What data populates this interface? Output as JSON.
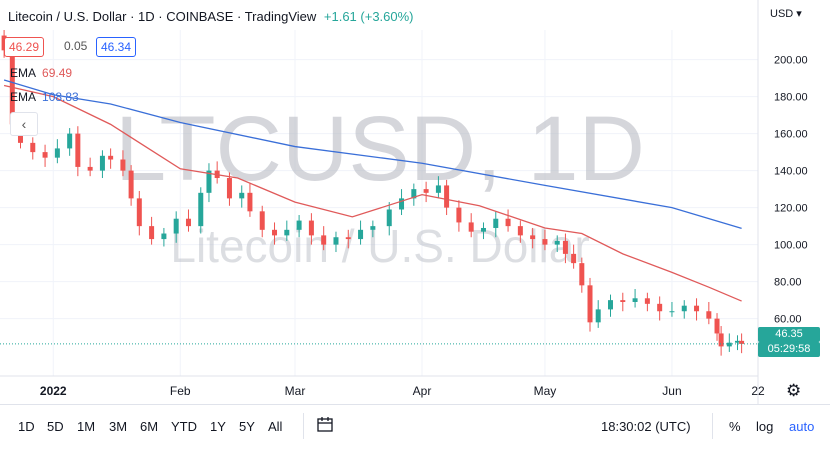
{
  "header": {
    "title": "Litecoin / U.S. Dollar · 1D · COINBASE · TradingView",
    "change": "+1.61 (+3.60%)",
    "bid": "46.29",
    "spread": "0.05",
    "ask": "46.34",
    "currency": "USD"
  },
  "indicators": [
    {
      "name": "EMA",
      "value": "69.49",
      "color": "#e05a5a"
    },
    {
      "name": "EMA",
      "value": "108.83",
      "color": "#3a6fd8"
    }
  ],
  "watermark": {
    "symbol": "LTCUSD, 1D",
    "name": "Litecoin / U.S. Dollar"
  },
  "price_label": {
    "price": "46.35",
    "countdown": "05:29:58"
  },
  "toolbar": {
    "timeframes": [
      "1D",
      "5D",
      "1M",
      "3M",
      "6M",
      "YTD",
      "1Y",
      "5Y",
      "All"
    ],
    "time": "18:30:02 (UTC)",
    "percent": "%",
    "log": "log",
    "auto": "auto"
  },
  "colors": {
    "up": "#26a69a",
    "down": "#ef5350",
    "ema_short": "#e05a5a",
    "ema_long": "#3a6fd8",
    "grid": "#f0f3fa"
  },
  "chart_data": {
    "type": "candlestick",
    "x_ticks": [
      "2022",
      "Feb",
      "Mar",
      "Apr",
      "May",
      "Jun",
      "22"
    ],
    "y_ticks": [
      60,
      80,
      100,
      120,
      140,
      160,
      180,
      200
    ],
    "ylim": [
      29,
      216
    ],
    "last_price": 46.35,
    "series": [
      {
        "name": "EMA 69.49",
        "points": [
          [
            "2021-12-20",
            186
          ],
          [
            "2022-01-01",
            180
          ],
          [
            "2022-01-15",
            165
          ],
          [
            "2022-02-01",
            141
          ],
          [
            "2022-02-15",
            136
          ],
          [
            "2022-03-01",
            123
          ],
          [
            "2022-03-15",
            115
          ],
          [
            "2022-04-01",
            127
          ],
          [
            "2022-04-15",
            121
          ],
          [
            "2022-05-01",
            109
          ],
          [
            "2022-05-10",
            106
          ],
          [
            "2022-05-20",
            95
          ],
          [
            "2022-06-01",
            85
          ],
          [
            "2022-06-10",
            77
          ],
          [
            "2022-06-18",
            69.5
          ]
        ]
      },
      {
        "name": "EMA 108.83",
        "points": [
          [
            "2021-12-20",
            189
          ],
          [
            "2022-01-01",
            181
          ],
          [
            "2022-01-15",
            176
          ],
          [
            "2022-02-01",
            166
          ],
          [
            "2022-03-01",
            153
          ],
          [
            "2022-04-01",
            144
          ],
          [
            "2022-05-01",
            132
          ],
          [
            "2022-06-01",
            120
          ],
          [
            "2022-06-18",
            108.8
          ]
        ]
      }
    ],
    "candles_close": [
      [
        "2021-12-20",
        205
      ],
      [
        "2021-12-22",
        165
      ],
      [
        "2021-12-24",
        155
      ],
      [
        "2021-12-27",
        150
      ],
      [
        "2021-12-30",
        147
      ],
      [
        "2022-01-02",
        152
      ],
      [
        "2022-01-05",
        160
      ],
      [
        "2022-01-07",
        142
      ],
      [
        "2022-01-10",
        140
      ],
      [
        "2022-01-13",
        148
      ],
      [
        "2022-01-15",
        146
      ],
      [
        "2022-01-18",
        140
      ],
      [
        "2022-01-20",
        125
      ],
      [
        "2022-01-22",
        110
      ],
      [
        "2022-01-25",
        103
      ],
      [
        "2022-01-28",
        106
      ],
      [
        "2022-01-31",
        114
      ],
      [
        "2022-02-03",
        110
      ],
      [
        "2022-02-06",
        128
      ],
      [
        "2022-02-08",
        140
      ],
      [
        "2022-02-10",
        136
      ],
      [
        "2022-02-13",
        125
      ],
      [
        "2022-02-16",
        128
      ],
      [
        "2022-02-18",
        118
      ],
      [
        "2022-02-21",
        108
      ],
      [
        "2022-02-24",
        105
      ],
      [
        "2022-02-27",
        108
      ],
      [
        "2022-03-02",
        113
      ],
      [
        "2022-03-05",
        105
      ],
      [
        "2022-03-08",
        100
      ],
      [
        "2022-03-11",
        104
      ],
      [
        "2022-03-14",
        103
      ],
      [
        "2022-03-17",
        108
      ],
      [
        "2022-03-20",
        110
      ],
      [
        "2022-03-24",
        119
      ],
      [
        "2022-03-27",
        125
      ],
      [
        "2022-03-30",
        130
      ],
      [
        "2022-04-02",
        128
      ],
      [
        "2022-04-05",
        132
      ],
      [
        "2022-04-07",
        120
      ],
      [
        "2022-04-10",
        112
      ],
      [
        "2022-04-13",
        107
      ],
      [
        "2022-04-16",
        109
      ],
      [
        "2022-04-19",
        114
      ],
      [
        "2022-04-22",
        110
      ],
      [
        "2022-04-25",
        105
      ],
      [
        "2022-04-28",
        103
      ],
      [
        "2022-05-01",
        100
      ],
      [
        "2022-05-04",
        102
      ],
      [
        "2022-05-06",
        95
      ],
      [
        "2022-05-08",
        90
      ],
      [
        "2022-05-10",
        78
      ],
      [
        "2022-05-12",
        58
      ],
      [
        "2022-05-14",
        65
      ],
      [
        "2022-05-17",
        70
      ],
      [
        "2022-05-20",
        69
      ],
      [
        "2022-05-23",
        71
      ],
      [
        "2022-05-26",
        68
      ],
      [
        "2022-05-29",
        64
      ],
      [
        "2022-06-01",
        64
      ],
      [
        "2022-06-04",
        67
      ],
      [
        "2022-06-07",
        64
      ],
      [
        "2022-06-10",
        60
      ],
      [
        "2022-06-12",
        52
      ],
      [
        "2022-06-13",
        45
      ],
      [
        "2022-06-15",
        47
      ],
      [
        "2022-06-17",
        48
      ],
      [
        "2022-06-18",
        46.35
      ]
    ]
  }
}
